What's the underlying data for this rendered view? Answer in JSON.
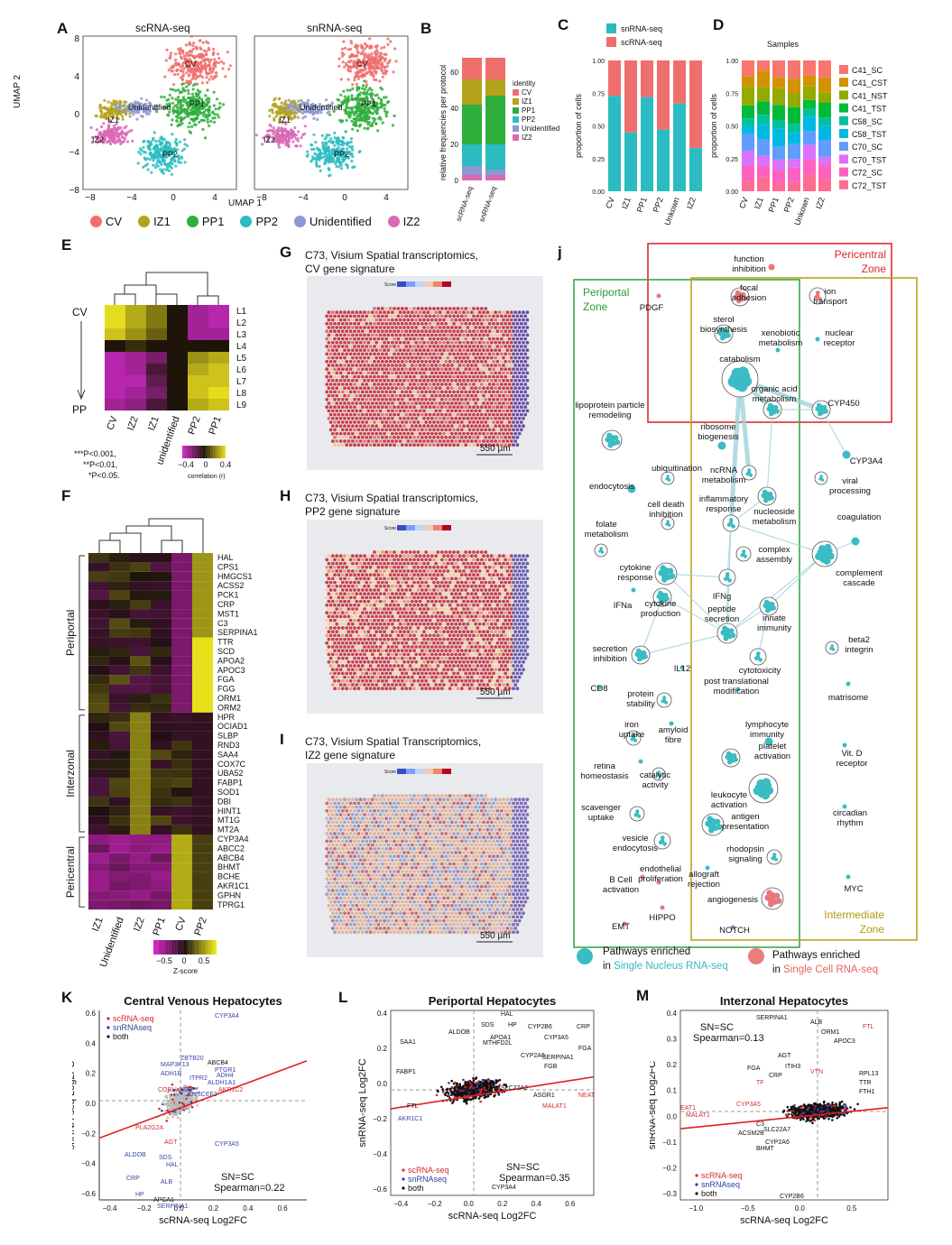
{
  "panels": {
    "A": {
      "letter": "A",
      "title_sc": "scRNA-seq",
      "title_sn": "snRNA-seq",
      "xlabel": "UMAP 1",
      "ylabel": "UMAP 2",
      "xticks": [
        "−8",
        "−4",
        "0",
        "4"
      ],
      "yticks": [
        "8",
        "4",
        "0",
        "−4",
        "−8"
      ],
      "cluster_labels": [
        "CV",
        "PP1",
        "IZ1",
        "Unidentified",
        "IZ2",
        "PP2"
      ],
      "legend": [
        {
          "name": "CV",
          "color": "#ef6f6c"
        },
        {
          "name": "IZ1",
          "color": "#b5a21b"
        },
        {
          "name": "PP1",
          "color": "#2fae3c"
        },
        {
          "name": "PP2",
          "color": "#2bbcc1"
        },
        {
          "name": "Unidentified",
          "color": "#8c98d4"
        },
        {
          "name": "IZ2",
          "color": "#d96ab6"
        }
      ]
    },
    "B": {
      "letter": "B",
      "ylabel": "relative frequencies per protocol",
      "yticks": [
        "60",
        "40",
        "20",
        "0"
      ],
      "xticks": [
        "scRNA-seq",
        "snRNA-seq"
      ],
      "legend_title": "identity",
      "legend": [
        {
          "name": "CV",
          "color": "#ef6f6c"
        },
        {
          "name": "IZ1",
          "color": "#b5a21b"
        },
        {
          "name": "PP1",
          "color": "#2fae3c"
        },
        {
          "name": "PP2",
          "color": "#2bbcc1"
        },
        {
          "name": "Unidentified",
          "color": "#8c98d4"
        },
        {
          "name": "IZ2",
          "color": "#d96ab6"
        }
      ]
    },
    "C": {
      "letter": "C",
      "ylabel": "proportion of cells",
      "yticks": [
        "1.00",
        "0.75",
        "0.50",
        "0.25",
        "0.00"
      ],
      "legend": [
        {
          "name": "snRNA-seq",
          "color": "#2bbcc1"
        },
        {
          "name": "scRNA-seq",
          "color": "#ef6f6c"
        }
      ]
    },
    "D": {
      "letter": "D",
      "title": "Samples",
      "ylabel": "proportion of cells",
      "yticks": [
        "1.00",
        "0.75",
        "0.50",
        "0.25",
        "0.00"
      ],
      "legend": [
        {
          "name": "C41_SC",
          "color": "#f8766d"
        },
        {
          "name": "C41_CST",
          "color": "#d39200"
        },
        {
          "name": "C41_NST",
          "color": "#93aa00"
        },
        {
          "name": "C41_TST",
          "color": "#00ba38"
        },
        {
          "name": "C58_SC",
          "color": "#00c19f"
        },
        {
          "name": "C58_TST",
          "color": "#00b9e3"
        },
        {
          "name": "C70_SC",
          "color": "#619cff"
        },
        {
          "name": "C70_TST",
          "color": "#db72fb"
        },
        {
          "name": "C72_SC",
          "color": "#ff61c3"
        },
        {
          "name": "C72_TST",
          "color": "#ff6c91"
        }
      ]
    },
    "E": {
      "letter": "E",
      "row_labels": [
        "L1",
        "L2",
        "L3",
        "L4",
        "L5",
        "L6",
        "L7",
        "L8",
        "L9"
      ],
      "col_labels": [
        "CV",
        "IZ2",
        "IZ1",
        "unidentified",
        "PP2",
        "PP1"
      ],
      "arrow_top": "CV",
      "arrow_bottom": "PP",
      "sig": [
        "***P<0.001,",
        "**P<0.01,",
        "*P<0.05."
      ],
      "scale_ticks": [
        "−0.4",
        "0",
        "0.4"
      ],
      "scale_label": "correlation (r)"
    },
    "F": {
      "letter": "F",
      "genes": [
        "HAL",
        "CPS1",
        "HMGCS1",
        "ACSS2",
        "PCK1",
        "CRP",
        "MST1",
        "C3",
        "SERPINA1",
        "TTR",
        "SCD",
        "APOA2",
        "APOC3",
        "FGA",
        "FGG",
        "ORM1",
        "ORM2",
        "HPR",
        "OCIAD1",
        "SLBP",
        "RND3",
        "SAA4",
        "COX7C",
        "UBA52",
        "FABP1",
        "SOD1",
        "DBI",
        "HINT1",
        "MT1G",
        "MT2A",
        "CYP3A4",
        "ABCC2",
        "ABCB4",
        "BHMT",
        "BCHE",
        "AKR1C1",
        "GPHN",
        "TPRG1"
      ],
      "groups": [
        "Periportal",
        "Interzonal",
        "Pericentral"
      ],
      "col_labels": [
        "IZ1",
        "Unidentified",
        "IZ2",
        "PP1",
        "CV",
        "PP2"
      ],
      "scale_ticks": [
        "−0.5",
        "0",
        "0.5"
      ],
      "scale_label": "Z-score"
    },
    "G": {
      "letter": "G",
      "title1": "C73, Visium Spatial transcriptomics,",
      "title2": "CV gene signature",
      "scale": "550 µm",
      "score": "Score"
    },
    "H": {
      "letter": "H",
      "title1": "C73, Visium Spatial transcriptomics,",
      "title2": "PP2 gene signature",
      "scale": "550 µm",
      "score": "Score"
    },
    "I": {
      "letter": "I",
      "title1": "C73, Visium Spatial Transcriptomics,",
      "title2": "IZ2 gene signature",
      "scale": "550 µm",
      "score": "Score"
    },
    "J": {
      "letter": "j",
      "zone_pericentral": "Pericentral Zone",
      "zone_periportal": "Periportal Zone",
      "zone_intermediate": "Intermediate Zone",
      "nodes": [
        "function inhibition",
        "focal adhesion",
        "ion transport",
        "PDGF",
        "sterol biosynthesis",
        "xenobiotic metabolism",
        "nuclear receptor",
        "catabolism",
        "organic acid metabolism",
        "CYP450",
        "lipoprotein particle remodeling",
        "ribosome biogenesis",
        "CYP3A4",
        "ubiquitination",
        "ncRNA metabolism",
        "viral processing",
        "endocytosis",
        "cell death inhibition",
        "inflammatory response",
        "nucleoside metabolism",
        "coagulation",
        "folate metabolism",
        "complex assembly",
        "cytokine response",
        "IFNg",
        "complement cascade",
        "IFNa",
        "cytokine production",
        "peptide secretion",
        "innate immunity",
        "secretion inhibition",
        "IL12",
        "beta2 integrin",
        "cytotoxicity",
        "CD8",
        "protein stability",
        "post translational modification",
        "matrisome",
        "iron uptake",
        "amyloid fibre",
        "lymphocyte immunity",
        "retina homeostasis",
        "platelet activation",
        "Vit. D receptor",
        "catalytic activity",
        "leukocyte activation",
        "scavenger uptake",
        "antigen presentation",
        "circadian rhythm",
        "vesicle endocytosis",
        "rhodopsin signaling",
        "B Cell activation",
        "endothelial proliferation",
        "allograft rejection",
        "MYC",
        "angiogenesis",
        "HIPPO",
        "EMT",
        "NOTCH"
      ],
      "legend_sn1": "Pathways enriched",
      "legend_sn2": "in Single Nucleus RNA-seq",
      "legend_sc1": "Pathways enriched",
      "legend_sc2": "in Single Cell RNA-seq"
    },
    "K": {
      "letter": "K",
      "title": "Central Venous Hepatocytes",
      "xlabel": "scRNA-seq Log2FC",
      "ylabel": "snRNA-seq Log2FC",
      "legend": [
        "scRNA-seq",
        "snRNAseq",
        "both"
      ],
      "stat1": "SN=SC",
      "stat2": "Spearman=0.22",
      "genes": [
        "CYP3A4",
        "ZBTB20",
        "ABCB4",
        "PTGR1",
        "MAP3K13",
        "ADH4",
        "ITPR2",
        "ALDH1A1",
        "ADH1B",
        "AKR1C2",
        "COBLL1",
        "ZNF",
        "CNSCEF2",
        "PLA2G2A",
        "AGT",
        "CYP3A5",
        "ALDOB",
        "SDS",
        "HAL",
        "CRP",
        "ALB",
        "HP",
        "APCA1",
        "SERPINA1"
      ],
      "xticks": [
        "−0.4",
        "−0.2",
        "0.0",
        "0.2",
        "0.4",
        "0.6"
      ],
      "yticks": [
        "0.6",
        "0.4",
        "0.2",
        "0.0",
        "−0.2",
        "−0.4",
        "−0.6"
      ]
    },
    "L": {
      "letter": "L",
      "title": "Periportal Hepatocytes",
      "xlabel": "scRNA-seq Log2FC",
      "ylabel": "snRNA-seq Log2FC",
      "legend": [
        "scRNA-seq",
        "snRNAseq",
        "both"
      ],
      "stat1": "SN=SC",
      "stat2": "Spearman=0.35",
      "genes": [
        "HAL",
        "SDS",
        "HP",
        "CYP2B6",
        "CRP",
        "SAA1",
        "ALDOB",
        "APOA1",
        "CYP3A5",
        "MTHFD2L",
        "FGA",
        "CYP2A6",
        "SERPINA1",
        "FGB",
        "FABP1",
        "FTL",
        "AKR1C1",
        "SLC27A2",
        "ASGR1",
        "MALAT1",
        "NEAT",
        "CYP3A4"
      ],
      "xticks": [
        "−0.4",
        "−0.2",
        "0.0",
        "0.2",
        "0.4",
        "0.6"
      ],
      "yticks": [
        "0.4",
        "0.2",
        "0.0",
        "−0.2",
        "−0.4",
        "−0.6"
      ]
    },
    "M": {
      "letter": "M",
      "title": "Interzonal Hepatocytes",
      "xlabel": "scRNA-seq Log2FC",
      "ylabel": "snRNA-seq Log2FC",
      "legend": [
        "scRNA-seq",
        "snRNAseq",
        "both"
      ],
      "stat1": "SN=SC",
      "stat2": "Spearman=0.13",
      "genes": [
        "SERPINA1",
        "ALB",
        "FTL",
        "ORM1",
        "APOC3",
        "AGT",
        "FGA",
        "ITIH3",
        "CRP",
        "VTN",
        "TF",
        "RPL13",
        "TTR",
        "FTH1",
        "EAT1",
        "CYP3A5",
        "MALAT1",
        "ACSM2B",
        "C3",
        "SLC22A7",
        "CYP2A6",
        "BHMT",
        "CYP2B6"
      ],
      "xticks": [
        "−1.0",
        "−0.5",
        "0.0",
        "0.5"
      ],
      "yticks": [
        "0.4",
        "0.3",
        "0.2",
        "0.1",
        "0.0",
        "−0.1",
        "−0.2",
        "−0.3"
      ]
    }
  }
}
